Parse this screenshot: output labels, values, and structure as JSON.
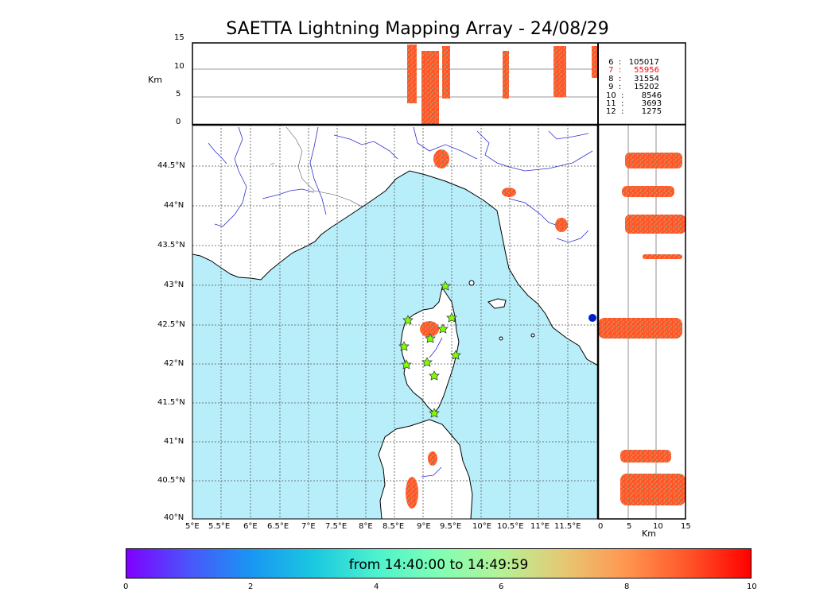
{
  "title": "SAETTA Lightning Mapping Array - 24/08/29",
  "time_range_label": "from 14:40:00 to 14:49:59",
  "altitude_axis": {
    "label": "Km",
    "ticks": [
      "0",
      "5",
      "10",
      "15"
    ]
  },
  "lon_ticks": [
    "5°E",
    "5.5°E",
    "6°E",
    "6.5°E",
    "7°E",
    "7.5°E",
    "8°E",
    "8.5°E",
    "9°E",
    "9.5°E",
    "10°E",
    "10.5°E",
    "11°E",
    "11.5°E"
  ],
  "lat_ticks": [
    "44.5°N",
    "44°N",
    "43.5°N",
    "43°N",
    "42.5°N",
    "42°N",
    "41.5°N",
    "41°N",
    "40.5°N",
    "40°N"
  ],
  "side_axis": {
    "label": "Km",
    "ticks": [
      "0",
      "5",
      "10",
      "15"
    ]
  },
  "colorbar": {
    "ticks": [
      "0",
      "2",
      "4",
      "6",
      "8",
      "10"
    ],
    "colors": [
      "#8000ff",
      "#1996f3",
      "#4cf2ce",
      "#b4f296",
      "#ff9650",
      "#ff0000"
    ]
  },
  "station_counts": [
    {
      "label": " 6  :   105017",
      "highlight": false
    },
    {
      "label": " 7  :     55956",
      "highlight": true
    },
    {
      "label": " 8  :     31554",
      "highlight": false
    },
    {
      "label": " 9  :     15202",
      "highlight": false
    },
    {
      "label": "10  :       8546",
      "highlight": false
    },
    {
      "label": "11  :       3693",
      "highlight": false
    },
    {
      "label": "12  :       1275",
      "highlight": false
    }
  ],
  "colors": {
    "sea": "#b8eef9",
    "land": "#ffffff",
    "coast": "#000000",
    "rivers": "#3030d0",
    "grid": "#555555",
    "highlight": "#ff0000",
    "station": "#7fff00"
  }
}
